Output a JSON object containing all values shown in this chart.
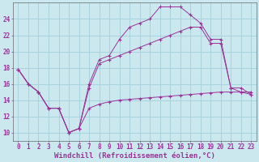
{
  "background_color": "#cce8ef",
  "grid_color": "#aad4dd",
  "line_color": "#993399",
  "xlabel": "Windchill (Refroidissement éolien,°C)",
  "xlabel_fontsize": 6.5,
  "tick_fontsize": 5.5,
  "xlim": [
    -0.5,
    23.5
  ],
  "ylim": [
    9,
    26
  ],
  "yticks": [
    10,
    12,
    14,
    16,
    18,
    20,
    22,
    24
  ],
  "xticks": [
    0,
    1,
    2,
    3,
    4,
    5,
    6,
    7,
    8,
    9,
    10,
    11,
    12,
    13,
    14,
    15,
    16,
    17,
    18,
    19,
    20,
    21,
    22,
    23
  ],
  "line1_x": [
    0,
    1,
    2,
    3,
    4,
    5,
    6,
    7,
    8,
    9,
    10,
    11,
    12,
    13,
    14,
    15,
    16,
    17,
    18,
    19,
    20,
    21,
    22,
    23
  ],
  "line1_y": [
    17.8,
    16.0,
    15.0,
    13.0,
    13.0,
    10.0,
    10.5,
    13.0,
    13.5,
    13.8,
    14.0,
    14.1,
    14.2,
    14.3,
    14.4,
    14.5,
    14.6,
    14.7,
    14.8,
    14.9,
    15.0,
    15.0,
    15.0,
    15.0
  ],
  "line2_x": [
    0,
    1,
    2,
    3,
    4,
    5,
    6,
    7,
    8,
    9,
    10,
    11,
    12,
    13,
    14,
    15,
    16,
    17,
    18,
    19,
    20,
    21,
    22,
    23
  ],
  "line2_y": [
    17.8,
    16.0,
    15.0,
    13.0,
    13.0,
    10.0,
    10.5,
    16.0,
    19.0,
    19.5,
    21.5,
    23.0,
    23.5,
    24.0,
    25.5,
    25.5,
    25.5,
    24.5,
    23.5,
    21.5,
    21.5,
    15.5,
    15.0,
    14.7
  ],
  "line3_x": [
    0,
    1,
    2,
    3,
    4,
    5,
    6,
    7,
    8,
    9,
    10,
    11,
    12,
    13,
    14,
    15,
    16,
    17,
    18,
    19,
    20,
    21,
    22,
    23
  ],
  "line3_y": [
    17.8,
    16.0,
    15.0,
    13.0,
    13.0,
    10.0,
    10.5,
    15.5,
    18.5,
    19.0,
    19.5,
    20.0,
    20.5,
    21.0,
    21.5,
    22.0,
    22.5,
    23.0,
    23.0,
    21.0,
    21.0,
    15.5,
    15.5,
    14.7
  ]
}
